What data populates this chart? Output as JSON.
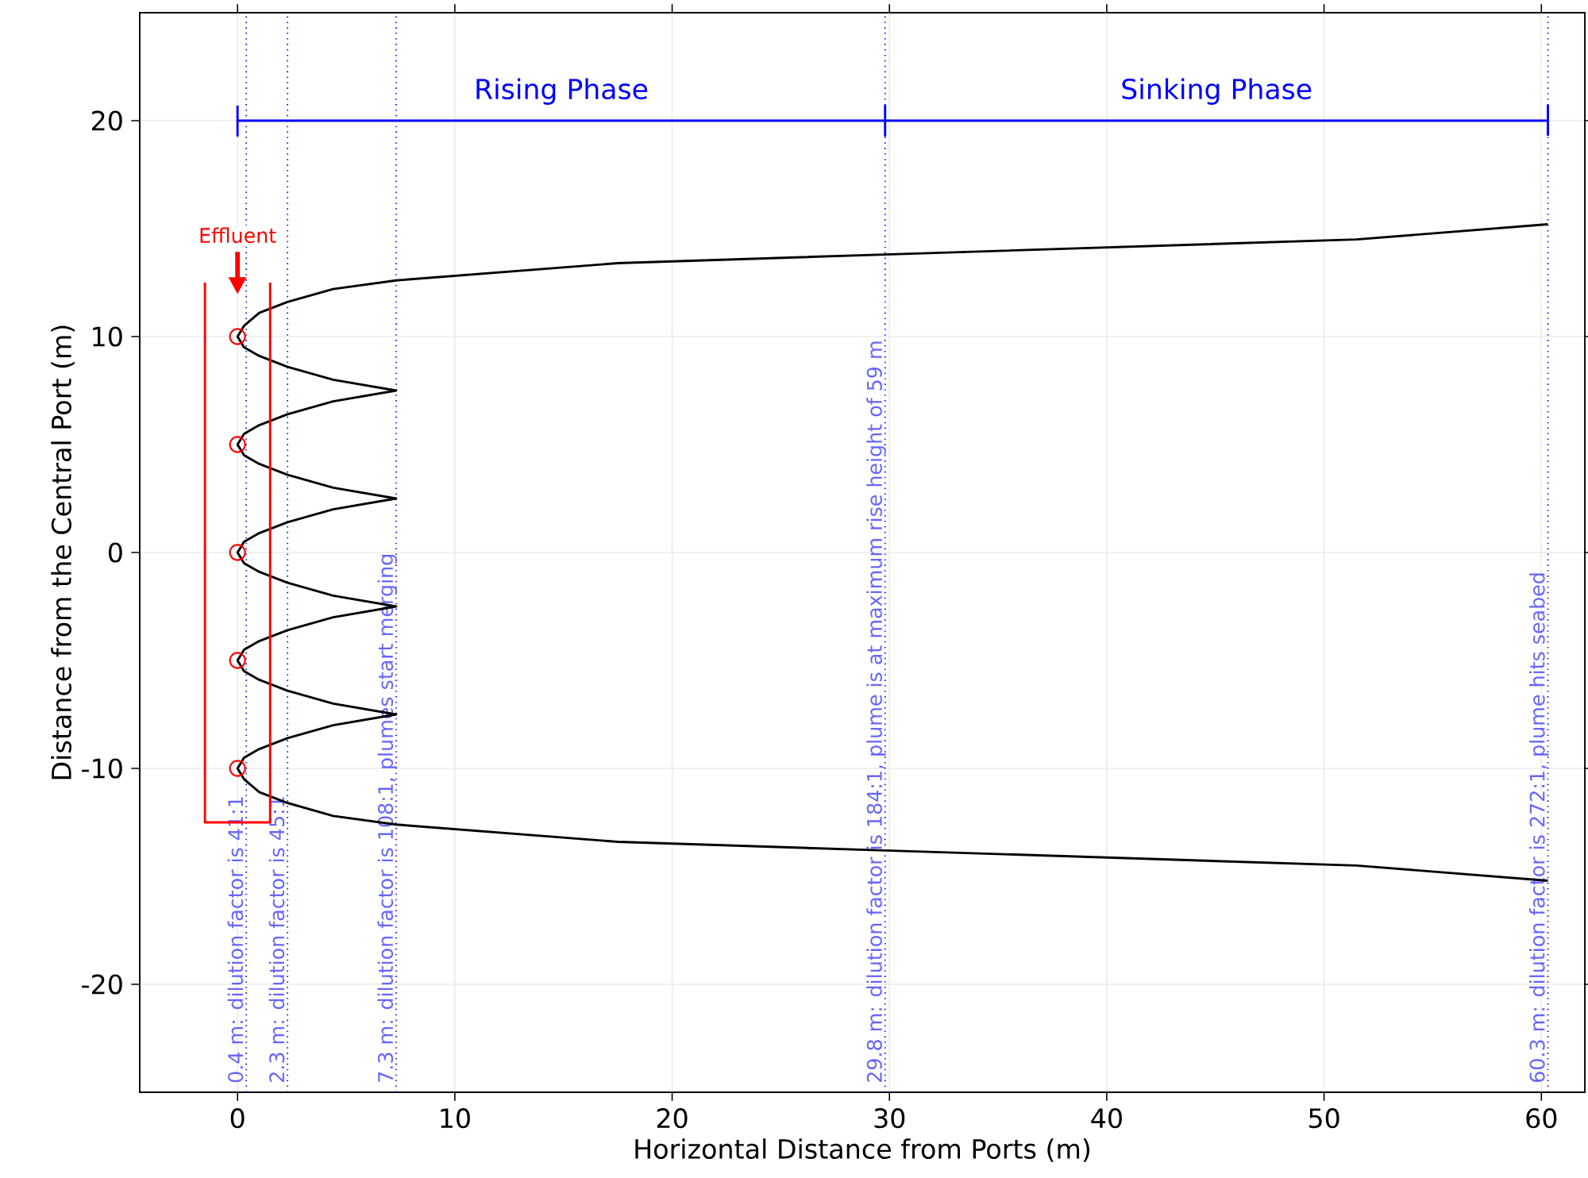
{
  "chart_data": {
    "type": "line",
    "xlabel": "Horizontal Distance from Ports (m)",
    "ylabel": "Distance from the Central Port (m)",
    "xlim": [
      -4.5,
      62
    ],
    "ylim": [
      -25,
      25
    ],
    "xticks": [
      0,
      10,
      20,
      30,
      40,
      50,
      60
    ],
    "yticks": [
      -20,
      -10,
      0,
      10,
      20
    ],
    "grid": true,
    "series": [
      {
        "color": "#000000",
        "marker": "none",
        "line_style": "solid",
        "x": [
          60.3,
          51.5,
          29.8,
          17.5,
          7.3,
          4.4,
          2.3,
          1,
          0.3,
          0,
          0.3,
          1,
          2.3,
          4.4,
          7.3,
          4.4,
          2.3,
          1,
          0.3,
          0,
          0.3,
          1,
          2.3,
          4.4,
          7.3,
          4.4,
          2.3,
          1,
          0.3,
          0,
          0.3,
          1,
          2.3,
          4.4,
          7.3,
          4.4,
          2.3,
          1,
          0.3,
          0,
          0.3,
          1,
          2.3,
          4.4,
          7.3,
          4.4,
          2.3,
          1,
          0.3,
          0,
          0.3,
          1,
          2.3,
          4.4,
          7.3,
          17.5,
          29.8,
          51.5,
          60.3
        ],
        "values": [
          15.2,
          14.5,
          13.8,
          13.4,
          12.6,
          12.2,
          11.6,
          11.1,
          10.5,
          10,
          9.5,
          9.1,
          8.6,
          8.0,
          7.5,
          7.0,
          6.4,
          5.9,
          5.5,
          5,
          4.5,
          4.1,
          3.6,
          3.0,
          2.5,
          2.0,
          1.4,
          0.9,
          0.5,
          0,
          -0.5,
          -0.9,
          -1.4,
          -2.0,
          -2.5,
          -3.0,
          -3.6,
          -4.1,
          -4.5,
          -5,
          -5.5,
          -5.9,
          -6.4,
          -7.0,
          -7.5,
          -8.0,
          -8.6,
          -9.1,
          -9.5,
          -10,
          -10.5,
          -11.1,
          -11.6,
          -12.2,
          -12.6,
          -13.4,
          -13.8,
          -14.5,
          -15.2
        ]
      },
      {
        "type": "scatter",
        "color": "#ff0000",
        "marker": "circle",
        "x": [
          0,
          0,
          0,
          0,
          0
        ],
        "values": [
          10,
          5,
          0,
          -5,
          -10
        ]
      },
      {
        "type": "line",
        "color": "#ff0000",
        "marker": "none",
        "line_style": "solid",
        "x": [
          -1.5,
          -1.5,
          1.5,
          1.5
        ],
        "values": [
          12.5,
          -12.5,
          -12.5,
          12.5
        ]
      },
      {
        "type": "line",
        "color": "#0000ff",
        "marker": "none",
        "line_style": "solid",
        "x": [
          0,
          0,
          0,
          29.8,
          29.8,
          29.8,
          29.8,
          60.3,
          60.3,
          60.3
        ],
        "values": [
          20.7,
          19.3,
          20,
          20,
          20.7,
          19.3,
          20,
          20,
          20.7,
          19.3
        ]
      }
    ],
    "ref_lines": [
      {
        "axis": "x",
        "value": 0.4,
        "label": "0.4 m: dilution factor is 41:1",
        "color": "#0000ff",
        "line_style": "dotted"
      },
      {
        "axis": "x",
        "value": 2.3,
        "label": "2.3 m: dilution factor is 45:1",
        "color": "#0000ff",
        "line_style": "dotted"
      },
      {
        "axis": "x",
        "value": 7.3,
        "label": "7.3 m: dilution factor is 108:1, plumes start merging",
        "color": "#0000ff",
        "line_style": "dotted"
      },
      {
        "axis": "x",
        "value": 29.8,
        "label": "29.8 m: dilution factor is 184:1, plume is at maximum rise height of 59 m",
        "color": "#0000ff",
        "line_style": "dotted"
      },
      {
        "axis": "x",
        "value": 60.3,
        "label": "60.3 m: dilution factor is 272:1, plume hits seabed",
        "color": "#0000ff",
        "line_style": "dotted"
      }
    ],
    "annotations": [
      {
        "text": "Rising Phase",
        "x": 14.9,
        "y": 20
      },
      {
        "text": "Sinking Phase",
        "x": 45.05,
        "y": 20
      },
      "Effluent"
    ]
  }
}
